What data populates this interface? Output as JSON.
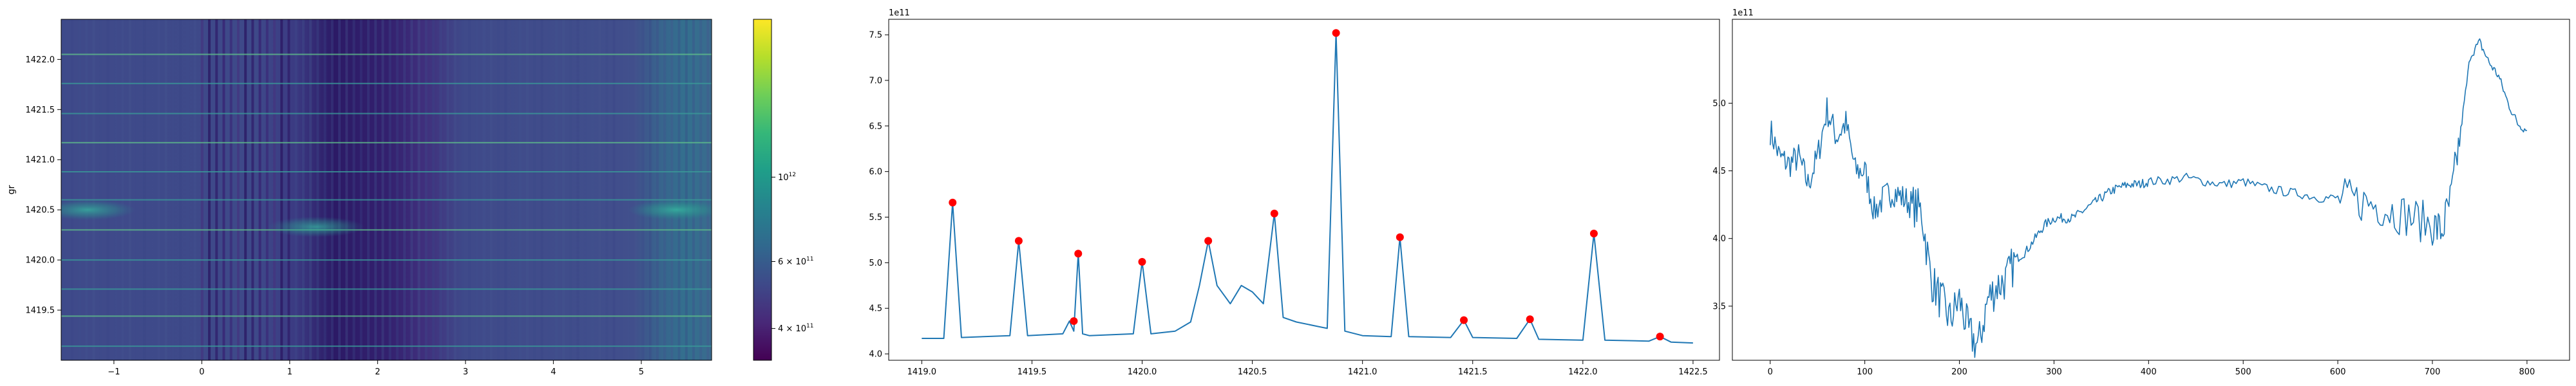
{
  "colors": {
    "line": "#1f77b4",
    "peaks": "#ff0000",
    "viridis": [
      "#440154",
      "#482878",
      "#3e4989",
      "#31688e",
      "#26828e",
      "#1f9e89",
      "#35b779",
      "#6ece58",
      "#b5de2b",
      "#fde725"
    ]
  },
  "chart_data": [
    {
      "type": "heatmap",
      "title": "",
      "xlabel": "",
      "ylabel": "gr",
      "xlim": [
        -1.6,
        5.8
      ],
      "ylim": [
        1419.0,
        1422.4
      ],
      "x_ticks": [
        -1,
        0,
        1,
        2,
        3,
        4,
        5
      ],
      "y_ticks": [
        1419.5,
        1420.0,
        1420.5,
        1421.0,
        1421.5,
        1422.0
      ],
      "colorbar": {
        "scale": "log",
        "range": [
          330000000000.0,
          2600000000000.0
        ],
        "ticks": [
          {
            "label": "4 × 10",
            "exp": "11",
            "value": 400000000000.0
          },
          {
            "label": "6 × 10",
            "exp": "11",
            "value": 600000000000.0
          },
          {
            "label": "10",
            "exp": "12",
            "value": 1000000000000.0
          }
        ]
      },
      "dark_band_x": [
        0.0,
        1.0
      ],
      "bright_band_x": [
        5.1,
        5.8
      ],
      "horizontal_lines_y": [
        1419.14,
        1419.44,
        1419.71,
        1420.0,
        1420.3,
        1420.6,
        1420.88,
        1421.17,
        1421.46,
        1421.76,
        1422.05
      ],
      "blobs": [
        {
          "x": -1.3,
          "y": 1420.5,
          "intensity": 0.55
        },
        {
          "x": 1.3,
          "y": 1420.33,
          "intensity": 0.5
        },
        {
          "x": 5.4,
          "y": 1420.5,
          "intensity": 0.6
        }
      ]
    },
    {
      "type": "line",
      "title": "",
      "xlabel": "",
      "ylabel": "",
      "offset_text": "1e11",
      "xlim": [
        1418.85,
        1422.62
      ],
      "ylim": [
        3.93,
        7.67
      ],
      "x_ticks": [
        1419.0,
        1419.5,
        1420.0,
        1420.5,
        1421.0,
        1421.5,
        1422.0,
        1422.5
      ],
      "y_ticks": [
        4.0,
        4.5,
        5.0,
        5.5,
        6.0,
        6.5,
        7.0,
        7.5
      ],
      "series": [
        {
          "x": [
            1419.0,
            1419.1,
            1419.14,
            1419.18,
            1419.4,
            1419.44,
            1419.48,
            1419.64,
            1419.67,
            1419.69,
            1419.71,
            1419.73,
            1419.76,
            1419.96,
            1420.0,
            1420.04,
            1420.15,
            1420.22,
            1420.26,
            1420.3,
            1420.34,
            1420.4,
            1420.45,
            1420.5,
            1420.55,
            1420.6,
            1420.64,
            1420.7,
            1420.8,
            1420.84,
            1420.88,
            1420.92,
            1421.0,
            1421.13,
            1421.17,
            1421.21,
            1421.4,
            1421.46,
            1421.5,
            1421.7,
            1421.76,
            1421.8,
            1422.0,
            1422.05,
            1422.1,
            1422.3,
            1422.35,
            1422.4,
            1422.5
          ],
          "y": [
            4.17,
            4.17,
            5.66,
            4.18,
            4.2,
            5.24,
            4.2,
            4.22,
            4.36,
            4.25,
            5.1,
            4.22,
            4.2,
            4.22,
            5.01,
            4.22,
            4.25,
            4.35,
            4.75,
            5.24,
            4.75,
            4.55,
            4.75,
            4.68,
            4.55,
            5.54,
            4.4,
            4.35,
            4.3,
            4.28,
            7.52,
            4.25,
            4.2,
            4.19,
            5.28,
            4.19,
            4.18,
            4.37,
            4.18,
            4.17,
            4.38,
            4.16,
            4.15,
            5.32,
            4.15,
            4.14,
            4.19,
            4.13,
            4.12
          ]
        }
      ],
      "peaks": {
        "x": [
          1419.14,
          1419.44,
          1419.69,
          1419.71,
          1420.0,
          1420.3,
          1420.6,
          1420.88,
          1421.17,
          1421.46,
          1421.76,
          1422.05,
          1422.35
        ],
        "y": [
          5.66,
          5.24,
          4.36,
          5.1,
          5.01,
          5.24,
          5.54,
          7.52,
          5.28,
          4.37,
          4.38,
          5.32,
          4.19
        ]
      }
    },
    {
      "type": "line",
      "title": "",
      "xlabel": "",
      "ylabel": "",
      "offset_text": "1e11",
      "xlim": [
        -40,
        845
      ],
      "ylim": [
        3.1,
        5.62
      ],
      "x_ticks": [
        0,
        100,
        200,
        300,
        400,
        500,
        600,
        700,
        800
      ],
      "y_ticks": [
        3.5,
        4.0,
        4.5,
        5.0
      ],
      "series": [
        {
          "x": [
            0,
            10,
            20,
            30,
            40,
            50,
            60,
            70,
            80,
            90,
            100,
            110,
            120,
            130,
            140,
            150,
            160,
            170,
            180,
            190,
            200,
            210,
            220,
            230,
            240,
            250,
            260,
            270,
            280,
            290,
            300,
            310,
            320,
            330,
            340,
            350,
            360,
            370,
            380,
            390,
            400,
            420,
            440,
            460,
            480,
            500,
            520,
            540,
            560,
            580,
            600,
            620,
            640,
            660,
            680,
            700,
            710,
            720,
            730,
            740,
            750,
            760,
            770,
            780,
            790,
            800
          ],
          "y": [
            4.8,
            4.6,
            4.55,
            4.6,
            4.4,
            4.6,
            4.95,
            4.75,
            4.85,
            4.5,
            4.5,
            4.2,
            4.3,
            4.35,
            4.3,
            4.25,
            4.2,
            3.7,
            3.55,
            3.4,
            3.55,
            3.3,
            3.2,
            3.55,
            3.65,
            3.7,
            3.85,
            3.9,
            4.0,
            4.1,
            4.15,
            4.15,
            4.15,
            4.2,
            4.25,
            4.3,
            4.35,
            4.38,
            4.4,
            4.4,
            4.42,
            4.43,
            4.45,
            4.42,
            4.4,
            4.42,
            4.38,
            4.35,
            4.33,
            4.3,
            4.3,
            4.28,
            4.25,
            4.2,
            4.15,
            4.1,
            4.05,
            4.3,
            4.8,
            5.35,
            5.45,
            5.3,
            5.2,
            5.0,
            4.85,
            4.8
          ]
        }
      ]
    }
  ]
}
